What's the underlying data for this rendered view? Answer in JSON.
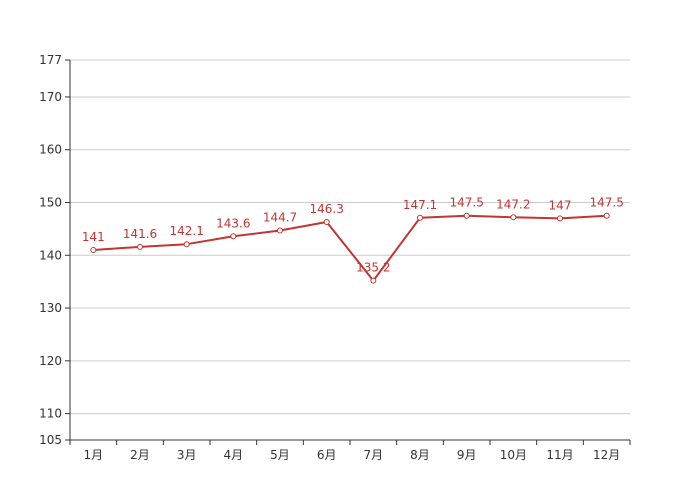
{
  "chart_data": {
    "type": "line",
    "title": "",
    "xlabel": "",
    "ylabel": "",
    "categories": [
      "1月",
      "2月",
      "3月",
      "4月",
      "5月",
      "6月",
      "7月",
      "8月",
      "9月",
      "10月",
      "11月",
      "12月"
    ],
    "series": [
      {
        "values": [
          141,
          141.6,
          142.1,
          143.6,
          144.7,
          146.3,
          135.2,
          147.1,
          147.5,
          147.2,
          147,
          147.5
        ],
        "data_labels": [
          "141",
          "141.6",
          "142.1",
          "143.6",
          "144.7",
          "146.3",
          "135.2",
          "147.1",
          "147.5",
          "147.2",
          "147",
          "147.5"
        ],
        "color": "#c23531"
      }
    ],
    "ylim": [
      105,
      177
    ],
    "yticks": [
      105,
      110,
      120,
      130,
      140,
      150,
      160,
      170,
      177
    ],
    "ytick_labels": [
      "105",
      "110",
      "120",
      "130",
      "140",
      "150",
      "160",
      "170",
      "177"
    ],
    "grid": true,
    "legend": "none"
  },
  "colors": {
    "line": "#c23531",
    "grid": "#cccccc",
    "axis": "#333333",
    "marker_fill": "#ffffff"
  }
}
